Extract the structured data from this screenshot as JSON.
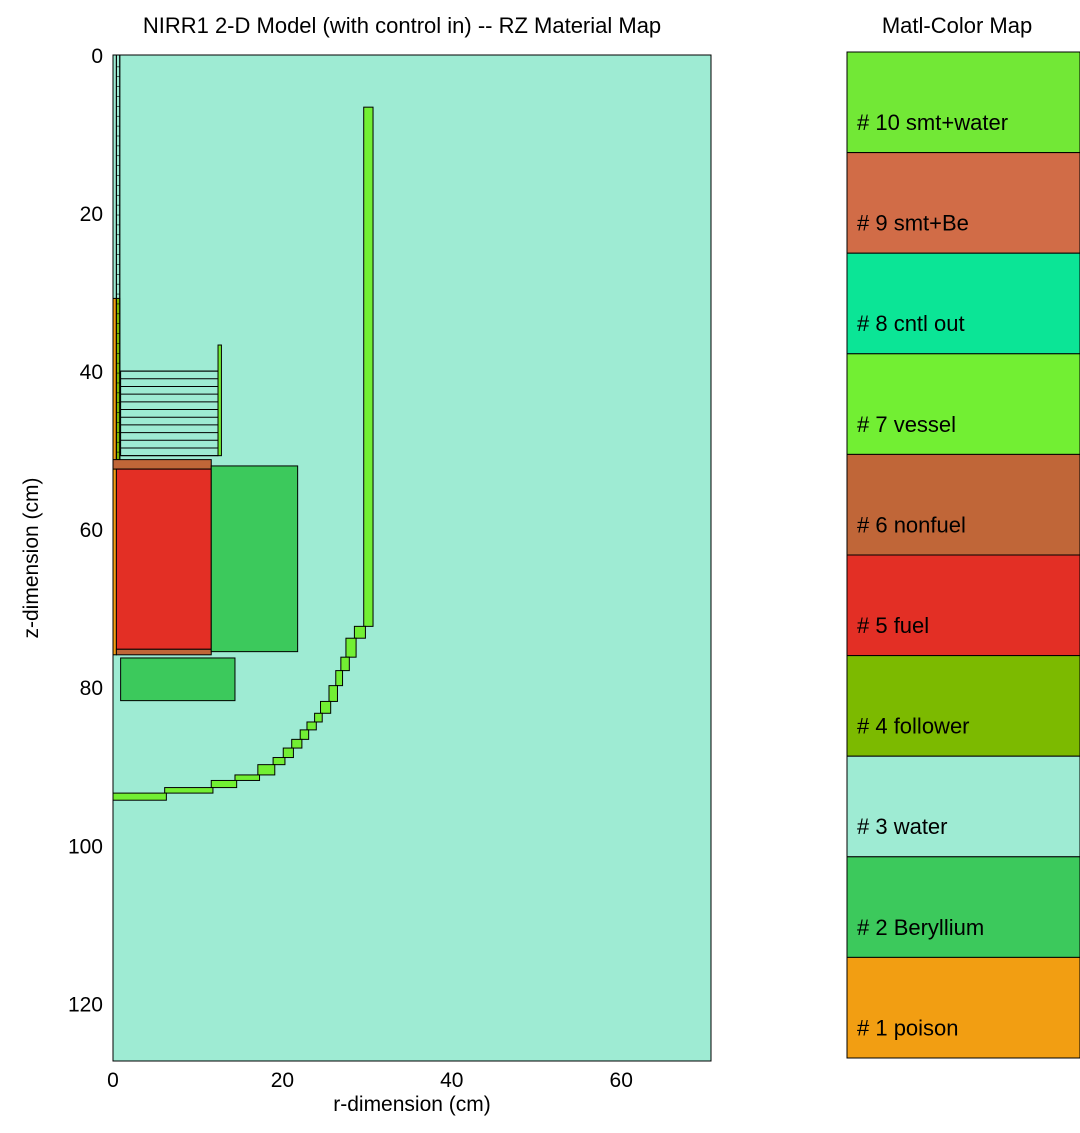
{
  "chart_data": [
    {
      "type": "heatmap",
      "title": "NIRR1 2-D Model (with control in) -- RZ Material Map",
      "xlabel": "r-dimension (cm)",
      "ylabel": "z-dimension (cm)",
      "xlim": [
        0,
        70.6
      ],
      "ylim": [
        0,
        127.3
      ],
      "y_inverted": true,
      "x_ticks": [
        "0",
        "20",
        "40",
        "60"
      ],
      "y_ticks": [
        "0",
        "20",
        "40",
        "60",
        "80",
        "100",
        "120"
      ],
      "background_material": 3,
      "regions": [
        {
          "material": 7,
          "r": [
            29.6,
            30.7
          ],
          "z": [
            6.6,
            72.3
          ]
        },
        {
          "material": 3,
          "r": [
            0.4,
            0.8
          ],
          "z": [
            0,
            51.2
          ]
        },
        {
          "material": 1,
          "r": [
            0,
            0.4
          ],
          "z": [
            30.8,
            75.9
          ]
        },
        {
          "material": 4,
          "r": [
            0.4,
            0.8
          ],
          "z": [
            30.8,
            51.2
          ]
        },
        {
          "material": 6,
          "r": [
            0,
            11.6
          ],
          "z": [
            51.2,
            52.4
          ]
        },
        {
          "material": 5,
          "r": [
            0.4,
            11.6
          ],
          "z": [
            52.4,
            75.2
          ]
        },
        {
          "material": 6,
          "r": [
            0.4,
            11.6
          ],
          "z": [
            75.2,
            75.9
          ]
        },
        {
          "material": 2,
          "r": [
            11.6,
            21.8
          ],
          "z": [
            52.0,
            75.5
          ]
        },
        {
          "material": 2,
          "r": [
            0.9,
            14.4
          ],
          "z": [
            76.3,
            81.7
          ]
        },
        {
          "material": 3,
          "r": [
            0.9,
            12.4
          ],
          "z": [
            40.0,
            50.7
          ]
        },
        {
          "material": 7,
          "r": [
            12.4,
            12.8
          ],
          "z": [
            36.7,
            50.7
          ]
        }
      ],
      "vessel_arc": {
        "material": 7,
        "cells": [
          [
            28.5,
            29.8,
            72.3,
            73.8
          ],
          [
            27.5,
            28.7,
            73.8,
            76.2
          ],
          [
            26.9,
            27.9,
            76.2,
            77.9
          ],
          [
            26.3,
            27.1,
            77.9,
            79.8
          ],
          [
            25.5,
            26.5,
            79.8,
            81.8
          ],
          [
            24.5,
            25.7,
            81.8,
            83.3
          ],
          [
            23.8,
            24.7,
            83.3,
            84.4
          ],
          [
            22.9,
            24.0,
            84.4,
            85.4
          ],
          [
            22.1,
            23.1,
            85.4,
            86.6
          ],
          [
            21.1,
            22.3,
            86.6,
            87.7
          ],
          [
            20.1,
            21.3,
            87.7,
            88.9
          ],
          [
            18.9,
            20.3,
            88.9,
            89.8
          ],
          [
            17.1,
            19.1,
            89.8,
            91.1
          ],
          [
            14.4,
            17.3,
            91.1,
            91.8
          ],
          [
            11.6,
            14.6,
            91.8,
            92.7
          ],
          [
            6.1,
            11.8,
            92.7,
            93.4
          ],
          [
            0,
            6.3,
            93.4,
            94.3
          ]
        ]
      },
      "hatch_rows": {
        "r": [
          0.9,
          12.4
        ],
        "z_start": 40.0,
        "z_end": 50.7,
        "count": 11
      }
    },
    {
      "type": "table",
      "title": "Matl-Color Map",
      "legend": [
        {
          "id": 10,
          "label": "# 10 smt+water",
          "color": "#72e836"
        },
        {
          "id": 9,
          "label": "# 9 smt+Be",
          "color": "#d16c47"
        },
        {
          "id": 8,
          "label": "# 8 cntl out",
          "color": "#0be596"
        },
        {
          "id": 7,
          "label": "# 7 vessel",
          "color": "#72ef33"
        },
        {
          "id": 6,
          "label": "# 6 nonfuel",
          "color": "#c06638"
        },
        {
          "id": 5,
          "label": "# 5 fuel",
          "color": "#e32f25"
        },
        {
          "id": 4,
          "label": "# 4 follower",
          "color": "#7cba00"
        },
        {
          "id": 3,
          "label": "# 3 water",
          "color": "#9eebd3"
        },
        {
          "id": 2,
          "label": "# 2 Beryllium",
          "color": "#3cc95c"
        },
        {
          "id": 1,
          "label": "# 1 poison",
          "color": "#f29e12"
        }
      ]
    }
  ]
}
